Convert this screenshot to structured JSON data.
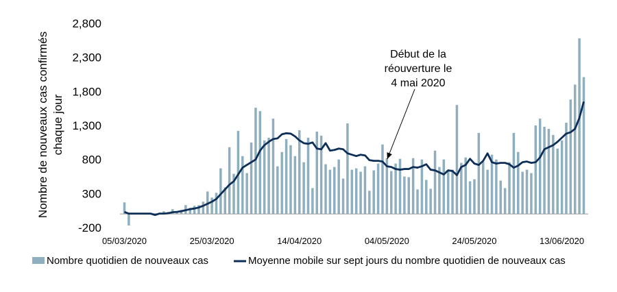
{
  "chart_data": {
    "type": "bar",
    "ylabel_lines": [
      "Nombre de nouveaux cas confirmés",
      "chaque jour"
    ],
    "ylim": [
      -200,
      2800
    ],
    "yticks": [
      -200,
      300,
      800,
      1300,
      1800,
      2300,
      2800
    ],
    "ytick_labels": [
      "-200",
      "300",
      "800",
      "1,300",
      "1,800",
      "2,300",
      "2,800"
    ],
    "xtick_labels": [
      "05/03/2020",
      "25/03/2020",
      "14/04/2020",
      "04/05/2020",
      "24/05/2020",
      "13/06/2020"
    ],
    "xtick_index": [
      0,
      20,
      40,
      60,
      80,
      100
    ],
    "annotation": {
      "lines": [
        "Début de la",
        "réouverture le",
        "4 mai 2020"
      ],
      "target_index": 60
    },
    "colors": {
      "bars": "#8fafbf",
      "line": "#0d2e57",
      "axis": "#999999"
    },
    "series": [
      {
        "name": "Nombre quotidien de nouveaux cas",
        "type": "bar",
        "values": [
          170,
          -170,
          10,
          10,
          10,
          10,
          0,
          10,
          10,
          40,
          30,
          70,
          30,
          60,
          130,
          90,
          120,
          130,
          180,
          330,
          240,
          310,
          670,
          390,
          980,
          590,
          1220,
          850,
          600,
          1050,
          1560,
          1510,
          1080,
          1120,
          1400,
          700,
          910,
          1100,
          1010,
          850,
          1230,
          760,
          1120,
          380,
          1210,
          1150,
          730,
          650,
          690,
          800,
          520,
          1330,
          650,
          670,
          620,
          700,
          340,
          640,
          740,
          1020,
          820,
          630,
          740,
          810,
          550,
          540,
          820,
          360,
          800,
          500,
          370,
          930,
          690,
          800,
          640,
          650,
          1600,
          750,
          830,
          480,
          510,
          1190,
          770,
          650,
          870,
          800,
          490,
          380,
          760,
          1190,
          910,
          620,
          650,
          600,
          1300,
          1400,
          1280,
          1250,
          1160,
          960,
          1080,
          1340,
          1680,
          1900,
          2580,
          2010
        ]
      },
      {
        "name": "Moyenne mobile sur sept jours du nombre quotidien de nouveaux cas",
        "type": "line",
        "values": [
          30,
          5,
          5,
          5,
          5,
          5,
          5,
          -15,
          5,
          5,
          10,
          25,
          30,
          40,
          55,
          70,
          80,
          95,
          120,
          150,
          180,
          220,
          290,
          360,
          430,
          480,
          580,
          680,
          720,
          760,
          800,
          930,
          1010,
          1060,
          1100,
          1110,
          1170,
          1185,
          1180,
          1140,
          1080,
          1040,
          1030,
          1050,
          960,
          950,
          1040,
          930,
          940,
          960,
          950,
          890,
          870,
          850,
          870,
          860,
          790,
          780,
          780,
          770,
          700,
          690,
          660,
          650,
          660,
          660,
          690,
          680,
          700,
          730,
          650,
          640,
          610,
          580,
          640,
          630,
          570,
          690,
          720,
          810,
          740,
          720,
          780,
          890,
          760,
          740,
          750,
          750,
          730,
          680,
          710,
          760,
          770,
          750,
          760,
          830,
          950,
          980,
          1010,
          1060,
          1120,
          1180,
          1200,
          1250,
          1410,
          1650
        ]
      }
    ]
  }
}
